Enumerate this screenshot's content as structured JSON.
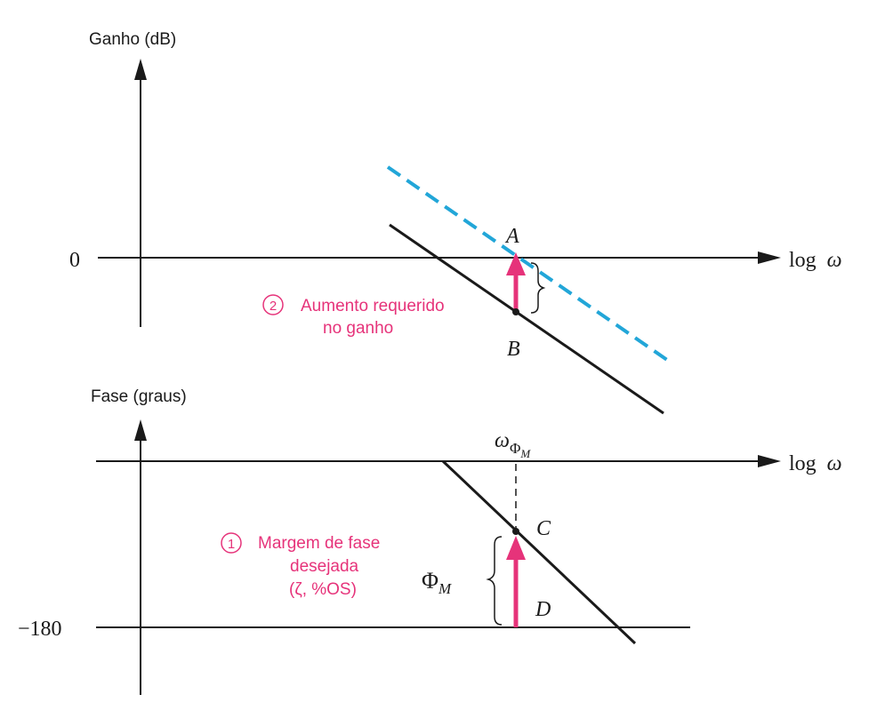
{
  "colors": {
    "line": "#1a1a1a",
    "accent": "#e6337a",
    "dashed": "#22a6d8"
  },
  "gain_plot": {
    "ylabel": "Ganho (dB)",
    "zero_tick": "0",
    "xlabel_log": "log",
    "xlabel_omega": "ω",
    "point_a": "A",
    "point_b": "B",
    "step_number": "2",
    "annotation_line1": "Aumento requerido",
    "annotation_line2": "no ganho"
  },
  "phase_plot": {
    "ylabel": "Fase (graus)",
    "tick_minus180": "−180",
    "xlabel_log": "log",
    "xlabel_omega": "ω",
    "omega_sym": "ω",
    "omega_sub": "Φ",
    "omega_subsub": "M",
    "point_c": "C",
    "point_d": "D",
    "phi_m_main": "Φ",
    "phi_m_sub": "M",
    "step_number": "1",
    "annotation_line1": "Margem de fase",
    "annotation_line2": "desejada",
    "annotation_line3": "(ζ, %OS)"
  }
}
